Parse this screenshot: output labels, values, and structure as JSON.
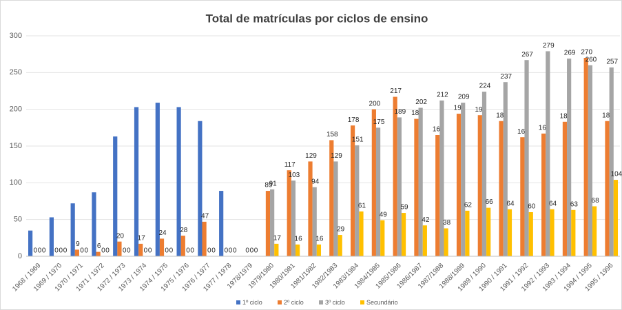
{
  "chart_data": {
    "type": "bar",
    "title": "Total de matrículas por ciclos de ensino",
    "categories": [
      "1968 / 1969",
      "1969 / 1970",
      "1970 / 1971",
      "1971 / 1972",
      "1972 / 1973",
      "1973 / 1974",
      "1974 / 1975",
      "1975 / 1976",
      "1976 / 1977",
      "1977 / 1978",
      "1978/1979",
      "1979/1980",
      "1980/1981",
      "1981/1982",
      "1982/1983",
      "1983/1984",
      "1984/1985",
      "1985/1986",
      "1986/1987",
      "1987/1988",
      "1988/1989",
      "1989 / 1990",
      "1990 / 1991",
      "1991 / 1992",
      "1992 / 1993",
      "1993 / 1994",
      "1994 / 1995",
      "1995 / 1996"
    ],
    "series": [
      {
        "name": "1º ciclo",
        "color": "#4472c4",
        "labeled": false,
        "values": [
          35,
          53,
          72,
          87,
          163,
          203,
          209,
          203,
          184,
          89,
          0,
          0,
          0,
          0,
          0,
          0,
          0,
          0,
          0,
          0,
          0,
          0,
          0,
          0,
          0,
          0,
          0,
          0
        ]
      },
      {
        "name": "2º ciclo",
        "color": "#ed7d31",
        "labeled": true,
        "values": [
          0,
          0,
          9,
          6,
          20,
          17,
          24,
          28,
          47,
          0,
          0,
          89,
          117,
          129,
          158,
          178,
          200,
          217,
          187,
          165,
          194,
          192,
          184,
          162,
          167,
          183,
          270,
          184
        ]
      },
      {
        "name": "3º ciclo",
        "color": "#a5a5a5",
        "labeled": true,
        "values": [
          0,
          0,
          0,
          0,
          0,
          0,
          0,
          0,
          0,
          0,
          0,
          91,
          103,
          94,
          129,
          151,
          175,
          189,
          202,
          212,
          209,
          224,
          237,
          267,
          279,
          269,
          260,
          257
        ]
      },
      {
        "name": "Secundário",
        "color": "#ffc000",
        "labeled": true,
        "values": [
          0,
          0,
          0,
          0,
          0,
          0,
          0,
          0,
          0,
          0,
          0,
          17,
          16,
          16,
          29,
          61,
          49,
          59,
          42,
          38,
          62,
          66,
          64,
          60,
          64,
          63,
          68,
          104
        ]
      }
    ],
    "ylim": [
      0,
      300
    ],
    "yticks": [
      0,
      50,
      100,
      150,
      200,
      250,
      300
    ],
    "grid": true,
    "legend": "bottom"
  }
}
